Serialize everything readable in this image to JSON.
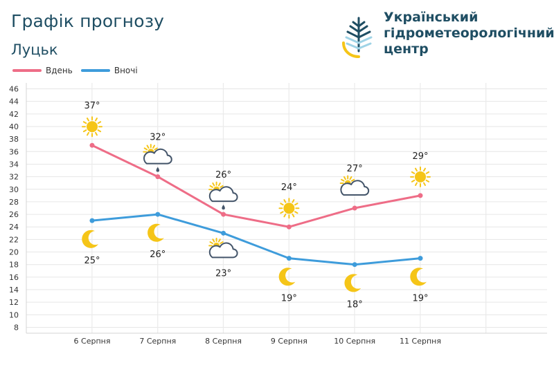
{
  "header": {
    "title": "Графік прогнозу",
    "city": "Луцьк"
  },
  "organization": {
    "line1": "Український",
    "line2": "гідрометеорологічний",
    "line3": "центр"
  },
  "colors": {
    "day": "#ee6d87",
    "night": "#3e9cdb",
    "title": "#1f4e63",
    "logo_dark": "#1f4e63",
    "logo_light": "#9fd3e6",
    "logo_yellow": "#f5c518",
    "sun": "#f5c518",
    "cloud": "#44556a",
    "moon": "#f5c518"
  },
  "chart_data": {
    "type": "line",
    "categories": [
      "6 Серпня",
      "7 Серпня",
      "8 Серпня",
      "9 Серпня",
      "10 Серпня",
      "11 Серпня"
    ],
    "series": [
      {
        "name": "Вдень",
        "values": [
          37,
          32,
          26,
          24,
          27,
          29
        ],
        "labels": [
          "37°",
          "32°",
          "26°",
          "24°",
          "27°",
          "29°"
        ],
        "icons": [
          "sun-icon",
          "partly-cloudy-rain-icon",
          "partly-cloudy-rain-icon",
          "sun-icon",
          "partly-cloudy-icon",
          "sun-icon"
        ]
      },
      {
        "name": "Вночі",
        "values": [
          25,
          26,
          23,
          19,
          18,
          19
        ],
        "labels": [
          "25°",
          "26°",
          "23°",
          "19°",
          "18°",
          "19°"
        ],
        "icons": [
          "moon-icon",
          "moon-icon",
          "partly-cloudy-icon",
          "moon-icon",
          "moon-icon",
          "moon-icon"
        ]
      }
    ],
    "ylim": [
      8,
      46
    ],
    "yticks": [
      "8",
      "10",
      "12",
      "14",
      "16",
      "18",
      "20",
      "22",
      "24",
      "26",
      "28",
      "30",
      "32",
      "34",
      "36",
      "38",
      "40",
      "42",
      "44",
      "46"
    ],
    "grid": true,
    "legend": "top-left"
  }
}
